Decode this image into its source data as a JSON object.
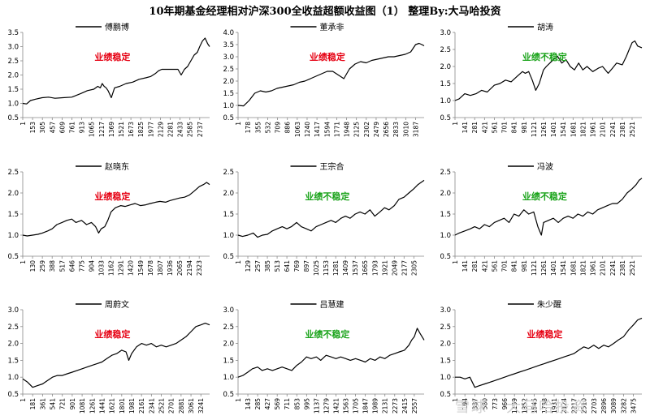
{
  "title": "10年期基金经理相对沪深300全收益超额收益图（1）  整理By:大马哈投资",
  "watermark": "雪球 · 大马哈投资",
  "colors": {
    "line": "#000000",
    "stable": "#e60012",
    "unstable": "#1aa31a",
    "axis": "#888888"
  },
  "chart_data": [
    {
      "type": "line",
      "legend": "傅鹏博",
      "tag": "业绩稳定",
      "tag_color": "stable",
      "ylim": [
        0.5,
        3.5
      ],
      "yticks": [
        "0.5",
        "1.0",
        "1.5",
        "2.0",
        "2.5",
        "3.0",
        "3.5"
      ],
      "xticks": [
        "1",
        "153",
        "305",
        "457",
        "609",
        "761",
        "913",
        "1065",
        "1217",
        "1369",
        "1521",
        "1673",
        "1825",
        "1977",
        "2129",
        "2281",
        "2433",
        "2585",
        "2737"
      ],
      "xmax": 2890,
      "series": [
        {
          "x": [
            1,
            60,
            120,
            200,
            300,
            400,
            500,
            620,
            760,
            900,
            1000,
            1100,
            1160,
            1200,
            1230,
            1260,
            1290,
            1320,
            1370,
            1420,
            1500,
            1600,
            1700,
            1800,
            1900,
            1980,
            2050,
            2100,
            2150,
            2200,
            2281,
            2350,
            2400,
            2450,
            2500,
            2550,
            2600,
            2650,
            2700,
            2737,
            2780,
            2820,
            2860,
            2890
          ],
          "y": [
            1.0,
            0.98,
            1.1,
            1.15,
            1.2,
            1.22,
            1.18,
            1.2,
            1.22,
            1.35,
            1.45,
            1.5,
            1.6,
            1.55,
            1.7,
            1.6,
            1.55,
            1.45,
            1.2,
            1.55,
            1.6,
            1.7,
            1.75,
            1.85,
            1.9,
            1.95,
            2.05,
            2.15,
            2.2,
            2.2,
            2.2,
            2.2,
            2.2,
            2.0,
            2.2,
            2.3,
            2.5,
            2.7,
            2.8,
            3.0,
            3.2,
            3.3,
            3.1,
            3.0
          ]
        }
      ]
    },
    {
      "type": "line",
      "legend": "董承非",
      "tag": "业绩稳定",
      "tag_color": "stable",
      "ylim": [
        0.5,
        4.0
      ],
      "yticks": [
        "0.5",
        "1.0",
        "1.5",
        "2.0",
        "2.5",
        "3.0",
        "3.5",
        "4.0"
      ],
      "xticks": [
        "1",
        "178",
        "355",
        "532",
        "709",
        "886",
        "1063",
        "1240",
        "1417",
        "1594",
        "1771",
        "1948",
        "2125",
        "2302",
        "2479",
        "2656",
        "2833",
        "3010",
        "3187"
      ],
      "xmax": 3340,
      "series": [
        {
          "x": [
            1,
            100,
            200,
            300,
            400,
            500,
            600,
            700,
            800,
            900,
            1000,
            1100,
            1200,
            1300,
            1400,
            1500,
            1600,
            1700,
            1800,
            1900,
            2000,
            2100,
            2200,
            2300,
            2400,
            2500,
            2600,
            2700,
            2800,
            2900,
            3000,
            3100,
            3187,
            3250,
            3300,
            3340
          ],
          "y": [
            1.0,
            0.98,
            1.2,
            1.5,
            1.6,
            1.55,
            1.6,
            1.7,
            1.75,
            1.8,
            1.85,
            1.95,
            2.0,
            2.1,
            2.2,
            2.3,
            2.4,
            2.4,
            2.25,
            2.1,
            2.5,
            2.7,
            2.8,
            2.75,
            2.85,
            2.9,
            2.95,
            3.0,
            3.0,
            3.05,
            3.1,
            3.2,
            3.5,
            3.55,
            3.5,
            3.45
          ]
        }
      ]
    },
    {
      "type": "line",
      "legend": "胡涛",
      "tag": "业绩不稳定",
      "tag_color": "unstable",
      "ylim": [
        0.5,
        3.0
      ],
      "yticks": [
        "0.5",
        "1.0",
        "1.5",
        "2.0",
        "2.5",
        "3.0"
      ],
      "xticks": [
        "1",
        "141",
        "281",
        "421",
        "561",
        "701",
        "841",
        "981",
        "1121",
        "1261",
        "1401",
        "1541",
        "1681",
        "1821",
        "1961",
        "2101",
        "2241",
        "2381",
        "2521"
      ],
      "xmax": 2660,
      "series": [
        {
          "x": [
            1,
            60,
            140,
            220,
            300,
            380,
            460,
            560,
            640,
            720,
            800,
            880,
            960,
            1000,
            1050,
            1100,
            1150,
            1200,
            1260,
            1300,
            1350,
            1401,
            1460,
            1520,
            1580,
            1640,
            1700,
            1760,
            1820,
            1880,
            1961,
            2040,
            2100,
            2180,
            2241,
            2300,
            2381,
            2440,
            2480,
            2521,
            2560,
            2600,
            2660
          ],
          "y": [
            1.0,
            1.05,
            1.2,
            1.15,
            1.2,
            1.3,
            1.25,
            1.45,
            1.5,
            1.6,
            1.55,
            1.7,
            1.85,
            1.8,
            1.85,
            1.6,
            1.3,
            1.5,
            1.9,
            2.0,
            2.1,
            2.2,
            2.3,
            2.1,
            2.2,
            2.0,
            1.9,
            2.1,
            1.9,
            2.0,
            1.85,
            1.95,
            2.0,
            1.8,
            1.95,
            2.1,
            2.05,
            2.3,
            2.5,
            2.7,
            2.75,
            2.6,
            2.55
          ]
        }
      ]
    },
    {
      "type": "line",
      "legend": "赵晓东",
      "tag": "业绩稳定",
      "tag_color": "stable",
      "ylim": [
        0.5,
        2.5
      ],
      "yticks": [
        "0.5",
        "1.0",
        "1.5",
        "2.0",
        "2.5"
      ],
      "xticks": [
        "1",
        "130",
        "259",
        "388",
        "517",
        "646",
        "775",
        "904",
        "1033",
        "1162",
        "1291",
        "1420",
        "1549",
        "1678",
        "1807",
        "1936",
        "2065",
        "2194",
        "2323"
      ],
      "xmax": 2460,
      "series": [
        {
          "x": [
            1,
            60,
            130,
            200,
            259,
            330,
            388,
            450,
            517,
            580,
            646,
            700,
            775,
            840,
            904,
            960,
            1000,
            1033,
            1080,
            1120,
            1162,
            1220,
            1291,
            1350,
            1420,
            1480,
            1549,
            1620,
            1678,
            1750,
            1807,
            1880,
            1936,
            2000,
            2065,
            2130,
            2194,
            2260,
            2323,
            2380,
            2420,
            2460
          ],
          "y": [
            1.0,
            0.98,
            1.0,
            1.02,
            1.05,
            1.1,
            1.15,
            1.25,
            1.3,
            1.35,
            1.38,
            1.3,
            1.35,
            1.25,
            1.3,
            1.2,
            1.05,
            1.15,
            1.2,
            1.35,
            1.55,
            1.65,
            1.7,
            1.68,
            1.72,
            1.75,
            1.7,
            1.72,
            1.75,
            1.78,
            1.8,
            1.78,
            1.82,
            1.85,
            1.88,
            1.9,
            1.95,
            2.05,
            2.15,
            2.2,
            2.25,
            2.2
          ]
        }
      ]
    },
    {
      "type": "line",
      "legend": "王宗合",
      "tag": "业绩不稳定",
      "tag_color": "unstable",
      "ylim": [
        0.5,
        2.5
      ],
      "yticks": [
        "0.5",
        "1.0",
        "1.5",
        "2.0",
        "2.5"
      ],
      "xticks": [
        "1",
        "129",
        "257",
        "385",
        "513",
        "641",
        "769",
        "897",
        "1025",
        "1153",
        "1281",
        "1409",
        "1537",
        "1665",
        "1793",
        "1921",
        "2049",
        "2177",
        "2305"
      ],
      "xmax": 2440,
      "series": [
        {
          "x": [
            1,
            60,
            129,
            200,
            257,
            320,
            385,
            450,
            513,
            580,
            641,
            700,
            769,
            830,
            897,
            960,
            1025,
            1090,
            1153,
            1220,
            1281,
            1350,
            1409,
            1470,
            1537,
            1600,
            1665,
            1730,
            1793,
            1860,
            1921,
            1980,
            2049,
            2110,
            2177,
            2240,
            2305,
            2360,
            2400,
            2440
          ],
          "y": [
            1.0,
            0.97,
            1.0,
            1.05,
            0.95,
            1.0,
            1.02,
            1.1,
            1.15,
            1.2,
            1.15,
            1.2,
            1.3,
            1.2,
            1.15,
            1.1,
            1.2,
            1.25,
            1.3,
            1.35,
            1.3,
            1.4,
            1.45,
            1.4,
            1.5,
            1.55,
            1.5,
            1.6,
            1.45,
            1.55,
            1.65,
            1.6,
            1.7,
            1.85,
            1.9,
            2.0,
            2.1,
            2.2,
            2.25,
            2.3
          ]
        }
      ]
    },
    {
      "type": "line",
      "legend": "冯波",
      "tag": "业绩不稳定",
      "tag_color": "unstable",
      "ylim": [
        0.5,
        2.5
      ],
      "yticks": [
        "0.5",
        "1.0",
        "1.5",
        "2.0",
        "2.5"
      ],
      "xticks": [
        "1",
        "141",
        "281",
        "421",
        "561",
        "701",
        "841",
        "981",
        "1121",
        "1261",
        "1401",
        "1541",
        "1681",
        "1821",
        "1961",
        "2101",
        "2241",
        "2381",
        "2521"
      ],
      "xmax": 2660,
      "series": [
        {
          "x": [
            1,
            60,
            141,
            220,
            281,
            350,
            421,
            490,
            561,
            630,
            701,
            770,
            841,
            910,
            981,
            1050,
            1121,
            1180,
            1230,
            1261,
            1330,
            1401,
            1470,
            1541,
            1610,
            1681,
            1750,
            1821,
            1890,
            1961,
            2030,
            2101,
            2170,
            2241,
            2310,
            2381,
            2450,
            2521,
            2580,
            2620,
            2660
          ],
          "y": [
            1.0,
            1.05,
            1.1,
            1.15,
            1.2,
            1.15,
            1.25,
            1.2,
            1.3,
            1.35,
            1.4,
            1.3,
            1.5,
            1.45,
            1.6,
            1.5,
            1.55,
            1.2,
            1.0,
            1.3,
            1.35,
            1.4,
            1.3,
            1.4,
            1.45,
            1.4,
            1.5,
            1.45,
            1.55,
            1.5,
            1.6,
            1.65,
            1.7,
            1.75,
            1.75,
            1.85,
            2.0,
            2.1,
            2.2,
            2.3,
            2.35
          ]
        }
      ]
    },
    {
      "type": "line",
      "legend": "周蔚文",
      "tag": "业绩稳定",
      "tag_color": "stable",
      "ylim": [
        0.5,
        3.0
      ],
      "yticks": [
        "0.5",
        "1.0",
        "1.5",
        "2.0",
        "2.5",
        "3.0"
      ],
      "xticks": [
        "1",
        "181",
        "361",
        "541",
        "721",
        "901",
        "1081",
        "1261",
        "1441",
        "1621",
        "1801",
        "1981",
        "2161",
        "2341",
        "2521",
        "2701",
        "2881",
        "3061",
        "3241"
      ],
      "xmax": 3400,
      "series": [
        {
          "x": [
            1,
            90,
            181,
            270,
            361,
            450,
            541,
            630,
            721,
            810,
            901,
            990,
            1081,
            1170,
            1261,
            1350,
            1441,
            1530,
            1621,
            1710,
            1801,
            1880,
            1930,
            1981,
            2070,
            2161,
            2250,
            2341,
            2430,
            2521,
            2610,
            2701,
            2790,
            2881,
            2970,
            3061,
            3150,
            3241,
            3320,
            3400
          ],
          "y": [
            0.95,
            0.85,
            0.7,
            0.75,
            0.8,
            0.9,
            1.0,
            1.05,
            1.05,
            1.1,
            1.15,
            1.2,
            1.25,
            1.3,
            1.35,
            1.4,
            1.45,
            1.55,
            1.65,
            1.7,
            1.8,
            1.75,
            1.5,
            1.7,
            1.9,
            2.0,
            1.95,
            2.0,
            1.9,
            1.95,
            1.9,
            1.95,
            2.0,
            2.1,
            2.2,
            2.35,
            2.5,
            2.55,
            2.6,
            2.55
          ]
        }
      ]
    },
    {
      "type": "line",
      "legend": "吕慧建",
      "tag": "业绩不稳定",
      "tag_color": "unstable",
      "ylim": [
        0.5,
        3.0
      ],
      "yticks": [
        "0.5",
        "1.0",
        "1.5",
        "2.0",
        "2.5",
        "3.0"
      ],
      "xticks": [
        "1",
        "143",
        "285",
        "427",
        "569",
        "711",
        "853",
        "995",
        "1137",
        "1279",
        "1421",
        "1563",
        "1705",
        "1847",
        "1989",
        "2131",
        "2273",
        "2415",
        "2557"
      ],
      "xmax": 2700,
      "series": [
        {
          "x": [
            1,
            70,
            143,
            210,
            285,
            350,
            427,
            500,
            569,
            640,
            711,
            780,
            853,
            920,
            995,
            1060,
            1137,
            1200,
            1279,
            1350,
            1421,
            1490,
            1563,
            1630,
            1705,
            1780,
            1847,
            1920,
            1989,
            2060,
            2131,
            2200,
            2273,
            2340,
            2415,
            2480,
            2520,
            2557,
            2600,
            2640,
            2700
          ],
          "y": [
            1.0,
            1.05,
            1.15,
            1.25,
            1.3,
            1.2,
            1.25,
            1.2,
            1.25,
            1.3,
            1.25,
            1.2,
            1.35,
            1.45,
            1.6,
            1.55,
            1.6,
            1.5,
            1.65,
            1.6,
            1.55,
            1.6,
            1.55,
            1.5,
            1.55,
            1.5,
            1.45,
            1.55,
            1.5,
            1.6,
            1.55,
            1.65,
            1.7,
            1.75,
            1.8,
            1.95,
            2.1,
            2.2,
            2.45,
            2.3,
            2.1
          ]
        }
      ]
    },
    {
      "type": "line",
      "legend": "朱少醒",
      "tag": "业绩稳定",
      "tag_color": "stable",
      "ylim": [
        0.5,
        3.0
      ],
      "yticks": [
        "0.5",
        "1.0",
        "1.5",
        "2.0",
        "2.5",
        "3.0"
      ],
      "xticks": [
        "1",
        "194",
        "387",
        "580",
        "773",
        "966",
        "1159",
        "1352",
        "1545",
        "1738",
        "1931",
        "2124",
        "2317",
        "2510",
        "2703",
        "2896",
        "3089",
        "3282",
        "3475"
      ],
      "xmax": 3640,
      "series": [
        {
          "x": [
            1,
            100,
            194,
            290,
            387,
            480,
            580,
            680,
            773,
            870,
            966,
            1060,
            1159,
            1250,
            1352,
            1450,
            1545,
            1640,
            1738,
            1830,
            1931,
            2030,
            2124,
            2220,
            2317,
            2410,
            2510,
            2600,
            2703,
            2800,
            2896,
            2990,
            3089,
            3180,
            3282,
            3380,
            3475,
            3560,
            3640
          ],
          "y": [
            1.0,
            1.0,
            0.95,
            1.0,
            0.7,
            0.75,
            0.8,
            0.85,
            0.9,
            0.95,
            1.0,
            1.05,
            1.1,
            1.15,
            1.2,
            1.25,
            1.3,
            1.35,
            1.4,
            1.45,
            1.5,
            1.55,
            1.6,
            1.65,
            1.7,
            1.8,
            1.9,
            1.85,
            1.95,
            1.85,
            1.95,
            1.9,
            2.0,
            2.1,
            2.2,
            2.4,
            2.55,
            2.7,
            2.75
          ]
        }
      ]
    }
  ]
}
